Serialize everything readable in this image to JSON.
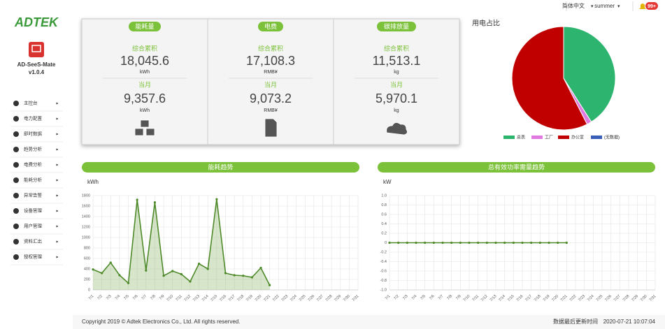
{
  "sidebar": {
    "logo": "ADTEK",
    "app_name": "AD-SeeS-Mate",
    "version": "v1.0.4",
    "menu": [
      "主控台",
      "电力配置",
      "即时数据",
      "趋势分析",
      "电费分析",
      "能耗分析",
      "异常告警",
      "设备管理",
      "用户管理",
      "资料汇出",
      "授权管理"
    ]
  },
  "topbar": {
    "language": "简体中文",
    "user": "summer",
    "notifications": "99+"
  },
  "cards": [
    {
      "title": "能耗量",
      "total_label": "综合累积",
      "total": "18,045.6",
      "total_unit": "kWh",
      "month_label": "当月",
      "month": "9,357.6",
      "month_unit": "kWh"
    },
    {
      "title": "电费",
      "total_label": "综合累积",
      "total": "17,108.3",
      "total_unit": "RMB¥",
      "month_label": "当月",
      "month": "9,073.2",
      "month_unit": "RMB¥"
    },
    {
      "title": "碳排放量",
      "total_label": "综合累积",
      "total": "11,513.1",
      "total_unit": "kg",
      "month_label": "当月",
      "month": "5,970.1",
      "month_unit": "kg"
    }
  ],
  "pie": {
    "type": "pie",
    "title": "用电占比",
    "categories": [
      "总表",
      "工厂",
      "办公室",
      "(无数据)"
    ],
    "values": [
      41,
      1.5,
      57.5,
      0
    ],
    "colors": [
      "#2db56f",
      "#e07ae0",
      "#c00000",
      "#3a5fb8"
    ]
  },
  "charts": [
    {
      "type": "line",
      "title": "能耗趋势",
      "y_label": "kWh",
      "color": "#4e8a2a",
      "area": true,
      "categories": [
        "7/1",
        "7/2",
        "7/3",
        "7/4",
        "7/5",
        "7/6",
        "7/7",
        "7/8",
        "7/9",
        "7/10",
        "7/11",
        "7/12",
        "7/13",
        "7/14",
        "7/15",
        "7/16",
        "7/17",
        "7/18",
        "7/19",
        "7/20",
        "7/21",
        "7/22",
        "7/23",
        "7/24",
        "7/25",
        "7/26",
        "7/27",
        "7/28",
        "7/29",
        "7/30",
        "7/31"
      ],
      "values": [
        390,
        320,
        520,
        280,
        130,
        1720,
        370,
        1670,
        270,
        360,
        300,
        160,
        500,
        400,
        1730,
        320,
        280,
        270,
        240,
        420,
        90,
        null,
        null,
        null,
        null,
        null,
        null,
        null,
        null,
        null,
        null
      ],
      "ylim": [
        0,
        1800
      ],
      "yticks": [
        0,
        200,
        400,
        600,
        800,
        1000,
        1200,
        1400,
        1600,
        1800
      ]
    },
    {
      "type": "line",
      "title": "总有效功率需量趋势",
      "y_label": "kW",
      "color": "#4e8a2a",
      "area": false,
      "categories": [
        "7/1",
        "7/2",
        "7/3",
        "7/4",
        "7/5",
        "7/6",
        "7/7",
        "7/8",
        "7/9",
        "7/10",
        "7/11",
        "7/12",
        "7/13",
        "7/14",
        "7/15",
        "7/16",
        "7/17",
        "7/18",
        "7/19",
        "7/20",
        "7/21",
        "7/22",
        "7/23",
        "7/24",
        "7/25",
        "7/26",
        "7/27",
        "7/28",
        "7/29",
        "7/30",
        "7/31"
      ],
      "values": [
        0,
        0,
        0,
        0,
        0,
        0,
        0,
        0,
        0,
        0,
        0,
        0,
        0,
        0,
        0,
        0,
        0,
        0,
        0,
        0,
        0,
        null,
        null,
        null,
        null,
        null,
        null,
        null,
        null,
        null,
        null
      ],
      "ylim": [
        -1,
        1
      ],
      "yticks": [
        {
          "value": -1,
          "label": "-1.0"
        },
        -0.8,
        -0.6,
        -0.4,
        -0.2,
        0,
        0.2,
        0.4,
        0.6,
        0.8,
        {
          "value": 1,
          "label": "1.0"
        }
      ]
    }
  ],
  "footer": {
    "copyright": "Copyright 2019 © Adtek Electronics Co., Ltd. All rights reserved.",
    "updated_label": "数据最后更新时间",
    "updated": "2020-07-21 10:07:04"
  }
}
